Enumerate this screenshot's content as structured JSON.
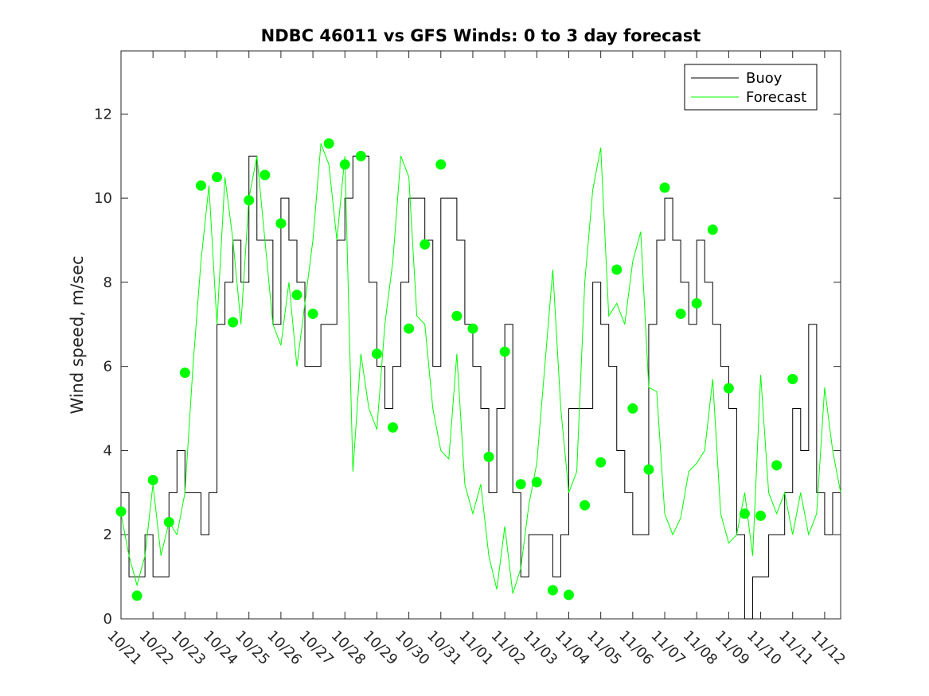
{
  "chart_data": {
    "type": "line",
    "title": "NDBC 46011 vs GFS Winds: 0 to 3 day forecast",
    "xlabel": "",
    "ylabel": "Wind speed, m/sec",
    "ylim": [
      0,
      13.5
    ],
    "yticks": [
      0,
      2,
      4,
      6,
      8,
      10,
      12
    ],
    "xlim": [
      0,
      22.5
    ],
    "xtick_labels": [
      "10/21",
      "10/22",
      "10/23",
      "10/24",
      "10/25",
      "10/26",
      "10/27",
      "10/28",
      "10/29",
      "10/30",
      "10/31",
      "11/01",
      "11/02",
      "11/03",
      "11/04",
      "11/05",
      "11/06",
      "11/07",
      "11/08",
      "11/09",
      "11/10",
      "11/11",
      "11/12"
    ],
    "grid": false,
    "legend": {
      "position": "top-right",
      "entries": [
        {
          "label": "Buoy",
          "color": "#000000"
        },
        {
          "label": "Forecast",
          "color": "#00ff00"
        }
      ]
    },
    "series": [
      {
        "name": "Buoy",
        "color": "#000000",
        "style": "step",
        "x": [
          0,
          0.25,
          0.5,
          0.75,
          1,
          1.25,
          1.5,
          1.75,
          2,
          2.25,
          2.5,
          2.75,
          3,
          3.25,
          3.5,
          3.75,
          4,
          4.25,
          4.5,
          4.75,
          5,
          5.25,
          5.5,
          5.75,
          6,
          6.25,
          6.5,
          6.75,
          7,
          7.25,
          7.5,
          7.75,
          8,
          8.25,
          8.5,
          8.75,
          9,
          9.25,
          9.5,
          9.75,
          10,
          10.25,
          10.5,
          10.75,
          11,
          11.25,
          11.5,
          11.75,
          12,
          12.25,
          12.5,
          12.75,
          13,
          13.25,
          13.5,
          13.75,
          14,
          14.25,
          14.5,
          14.75,
          15,
          15.25,
          15.5,
          15.75,
          16,
          16.25,
          16.5,
          16.75,
          17,
          17.25,
          17.5,
          17.75,
          18,
          18.25,
          18.5,
          18.75,
          19,
          19.25,
          19.5,
          19.75,
          20,
          20.25,
          20.5,
          20.75,
          21,
          21.25,
          21.5,
          21.75,
          22,
          22.25,
          22.5
        ],
        "y": [
          3,
          1,
          1,
          2,
          1,
          1,
          3,
          4,
          3,
          3,
          2,
          3,
          7,
          8,
          9,
          8,
          11,
          9,
          9,
          7,
          10,
          9,
          8,
          6,
          6,
          7,
          7,
          9,
          10,
          11,
          11,
          8,
          6,
          5,
          6,
          8,
          10,
          10,
          9,
          6,
          10,
          10,
          9,
          7,
          6,
          5,
          3,
          5,
          7,
          3,
          1,
          2,
          2,
          2,
          1,
          2,
          5,
          5,
          5,
          8,
          7,
          6,
          4,
          3,
          2,
          2,
          7,
          9,
          10,
          9,
          8,
          7,
          9,
          8,
          7,
          6,
          5,
          2,
          0,
          1,
          1,
          2,
          2,
          3,
          5,
          4,
          7,
          3,
          2,
          3,
          3
        ]
      },
      {
        "name": "",
        "color": "#00ff00",
        "style": "line",
        "x": [
          0,
          0.25,
          0.5,
          0.75,
          1,
          1.25,
          1.5,
          1.75,
          2,
          2.25,
          2.5,
          2.75,
          3,
          3.25,
          3.5,
          3.75,
          4,
          4.25,
          4.5,
          4.75,
          5,
          5.25,
          5.5,
          5.75,
          6,
          6.25,
          6.5,
          6.75,
          7,
          7.25,
          7.5,
          7.75,
          8,
          8.25,
          8.5,
          8.75,
          9,
          9.25,
          9.5,
          9.75,
          10,
          10.25,
          10.5,
          10.75,
          11,
          11.25,
          11.5,
          11.75,
          12,
          12.25,
          12.5,
          12.75,
          13,
          13.25,
          13.5,
          13.75,
          14,
          14.25,
          14.5,
          14.75,
          15,
          15.25,
          15.5,
          15.75,
          16,
          16.25,
          16.5,
          16.75,
          17,
          17.25,
          17.5,
          17.75,
          18,
          18.25,
          18.5,
          18.75,
          19,
          19.25,
          19.5,
          19.75,
          20,
          20.25,
          20.5,
          20.75,
          21,
          21.25,
          21.5,
          21.75,
          22,
          22.25,
          22.5
        ],
        "y": [
          2.5,
          1.5,
          0.8,
          1.5,
          3.2,
          1.5,
          2.3,
          2.0,
          3.0,
          6.0,
          8.5,
          10.3,
          7.0,
          10.5,
          9.0,
          7.0,
          10.0,
          11.0,
          9.0,
          7.0,
          6.5,
          8.0,
          6.0,
          7.5,
          9.0,
          11.3,
          10.8,
          9.0,
          11.0,
          3.5,
          6.3,
          5.0,
          4.5,
          7.0,
          8.5,
          11.0,
          10.5,
          7.2,
          7.0,
          5.0,
          4.0,
          3.8,
          6.3,
          3.2,
          2.5,
          3.2,
          1.5,
          0.7,
          2.2,
          0.6,
          1.2,
          2.7,
          3.7,
          6.0,
          8.3,
          5.0,
          3.0,
          3.5,
          8.0,
          10.2,
          11.2,
          7.2,
          7.5,
          7.0,
          8.5,
          9.2,
          5.5,
          5.4,
          2.5,
          2.0,
          2.4,
          3.5,
          3.7,
          4.0,
          5.7,
          2.5,
          1.8,
          2.0,
          3.0,
          1.5,
          5.8,
          3.0,
          2.5,
          3.0,
          2.0,
          3.0,
          2.0,
          2.5,
          5.5,
          4.0,
          3.0
        ]
      }
    ],
    "markers": {
      "label": "",
      "color": "#00ff00",
      "points": [
        [
          0,
          2.55
        ],
        [
          0.5,
          0.55
        ],
        [
          1,
          3.3
        ],
        [
          1.5,
          2.3
        ],
        [
          2,
          5.85
        ],
        [
          2.5,
          10.3
        ],
        [
          3,
          10.5
        ],
        [
          3.5,
          7.05
        ],
        [
          4,
          9.95
        ],
        [
          4.5,
          10.55
        ],
        [
          5,
          9.4
        ],
        [
          5.5,
          7.7
        ],
        [
          6,
          7.25
        ],
        [
          6.5,
          11.3
        ],
        [
          7,
          10.8
        ],
        [
          7.5,
          11.0
        ],
        [
          8,
          6.3
        ],
        [
          8.5,
          4.55
        ],
        [
          9,
          6.9
        ],
        [
          9.5,
          8.9
        ],
        [
          10,
          10.8
        ],
        [
          10.5,
          7.2
        ],
        [
          11,
          6.9
        ],
        [
          11.5,
          3.85
        ],
        [
          12,
          6.35
        ],
        [
          12.5,
          3.2
        ],
        [
          13,
          3.25
        ],
        [
          13.5,
          0.68
        ],
        [
          14,
          0.57
        ],
        [
          14.5,
          2.7
        ],
        [
          15,
          3.72
        ],
        [
          15.5,
          8.3
        ],
        [
          16,
          5.0
        ],
        [
          16.5,
          3.55
        ],
        [
          17,
          10.25
        ],
        [
          17.5,
          7.25
        ],
        [
          18,
          7.5
        ],
        [
          18.5,
          9.25
        ],
        [
          19,
          5.48
        ],
        [
          19.5,
          2.5
        ],
        [
          20,
          2.45
        ],
        [
          20.5,
          3.65
        ],
        [
          21,
          5.7
        ]
      ]
    }
  }
}
